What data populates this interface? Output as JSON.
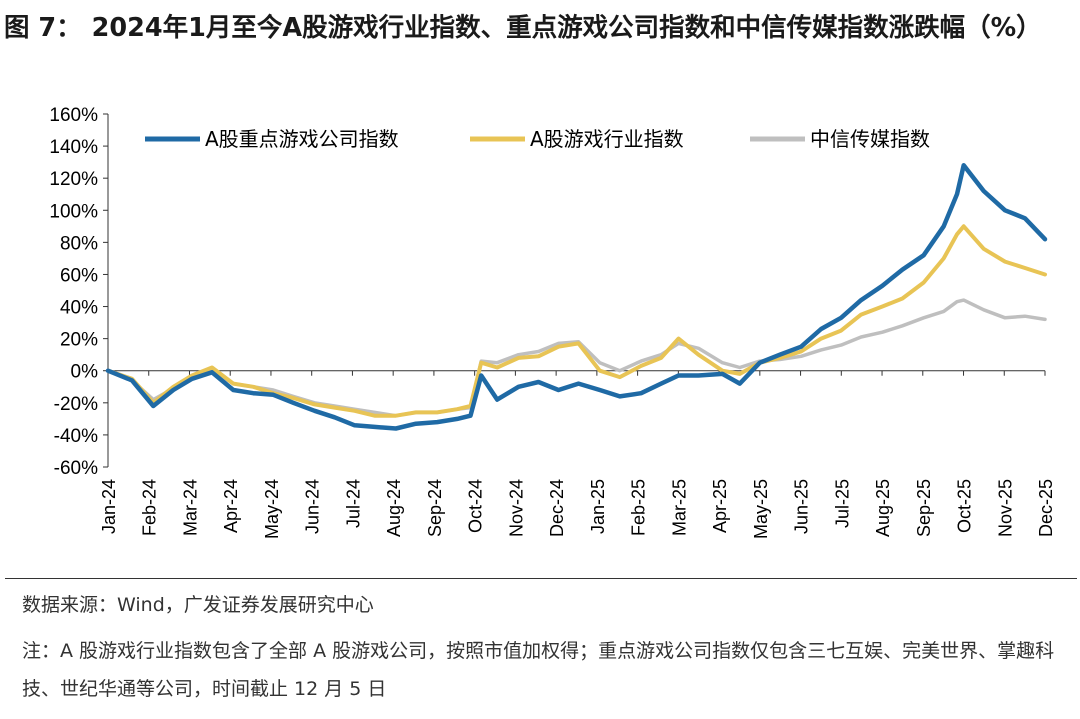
{
  "title": {
    "figure_label": "图 7：",
    "text": "2024年1月至今A股游戏行业指数、重点游戏公司指数和中信传媒指数涨跌幅（%）"
  },
  "source": "数据来源：Wind，广发证券发展研究中心",
  "note": "注：A 股游戏行业指数包含了全部 A 股游戏公司，按照市值加权得；重点游戏公司指数仅包含三七互娱、完美世界、掌趣科技、世纪华通等公司，时间截止 12 月 5 日",
  "chart_data": {
    "type": "line",
    "title": "",
    "xlabel": "",
    "ylabel": "",
    "ylim": [
      -60,
      160
    ],
    "y_ticks": [
      -60,
      -40,
      -20,
      0,
      20,
      40,
      60,
      80,
      100,
      120,
      140,
      160
    ],
    "y_tick_labels": [
      "-60%",
      "-40%",
      "-20%",
      "0%",
      "20%",
      "40%",
      "60%",
      "80%",
      "100%",
      "120%",
      "140%",
      "160%"
    ],
    "x_tick_labels": [
      "Jan-24",
      "Feb-24",
      "Mar-24",
      "Apr-24",
      "May-24",
      "Jun-24",
      "Jul-24",
      "Aug-24",
      "Sep-24",
      "Oct-24",
      "Nov-24",
      "Dec-24",
      "Jan-25",
      "Feb-25",
      "Mar-25",
      "Apr-25",
      "May-25",
      "Jun-25",
      "Jul-25",
      "Aug-25",
      "Sep-25",
      "Oct-25",
      "Nov-25",
      "Dec-25"
    ],
    "legend_position": "top",
    "grid": false,
    "x": [
      "2024-01-02",
      "2024-01-20",
      "2024-02-05",
      "2024-02-20",
      "2024-03-05",
      "2024-03-20",
      "2024-04-05",
      "2024-04-20",
      "2024-05-05",
      "2024-05-20",
      "2024-06-05",
      "2024-06-20",
      "2024-07-05",
      "2024-07-20",
      "2024-08-05",
      "2024-08-20",
      "2024-09-05",
      "2024-09-20",
      "2024-09-30",
      "2024-10-08",
      "2024-10-20",
      "2024-11-05",
      "2024-11-20",
      "2024-12-05",
      "2024-12-20",
      "2025-01-05",
      "2025-01-20",
      "2025-02-05",
      "2025-02-20",
      "2025-03-05",
      "2025-03-20",
      "2025-04-07",
      "2025-04-20",
      "2025-05-05",
      "2025-05-20",
      "2025-06-05",
      "2025-06-20",
      "2025-07-05",
      "2025-07-20",
      "2025-08-05",
      "2025-08-20",
      "2025-09-05",
      "2025-09-20",
      "2025-09-30",
      "2025-10-05",
      "2025-10-20",
      "2025-11-05",
      "2025-11-20",
      "2025-12-05"
    ],
    "series": [
      {
        "name": "A股重点游戏公司指数",
        "color": "#1f6aa5",
        "values": [
          0,
          -6,
          -22,
          -12,
          -5,
          -1,
          -12,
          -14,
          -15,
          -20,
          -25,
          -29,
          -34,
          -35,
          -36,
          -33,
          -32,
          -30,
          -28,
          -3,
          -18,
          -10,
          -7,
          -12,
          -8,
          -12,
          -16,
          -14,
          -8,
          -3,
          -3,
          -2,
          -8,
          5,
          10,
          15,
          26,
          33,
          44,
          53,
          63,
          72,
          90,
          110,
          128,
          112,
          100,
          95,
          82
        ]
      },
      {
        "name": "A股游戏行业指数",
        "color": "#e8c455",
        "values": [
          0,
          -5,
          -20,
          -10,
          -3,
          2,
          -8,
          -10,
          -14,
          -17,
          -21,
          -23,
          -25,
          -28,
          -28,
          -26,
          -26,
          -24,
          -22,
          5,
          2,
          8,
          9,
          15,
          17,
          0,
          -4,
          3,
          8,
          20,
          10,
          0,
          -2,
          5,
          8,
          12,
          20,
          25,
          35,
          40,
          45,
          55,
          70,
          85,
          90,
          76,
          68,
          64,
          60
        ]
      },
      {
        "name": "中信传媒指数",
        "color": "#bfbfbf",
        "values": [
          0,
          -6,
          -18,
          -11,
          -3,
          0,
          -8,
          -10,
          -12,
          -16,
          -20,
          -22,
          -24,
          -26,
          -28,
          -26,
          -26,
          -24,
          -23,
          6,
          5,
          10,
          12,
          17,
          18,
          5,
          0,
          6,
          10,
          17,
          14,
          5,
          2,
          6,
          7,
          9,
          13,
          16,
          21,
          24,
          28,
          33,
          37,
          43,
          44,
          38,
          33,
          34,
          32
        ]
      }
    ]
  }
}
